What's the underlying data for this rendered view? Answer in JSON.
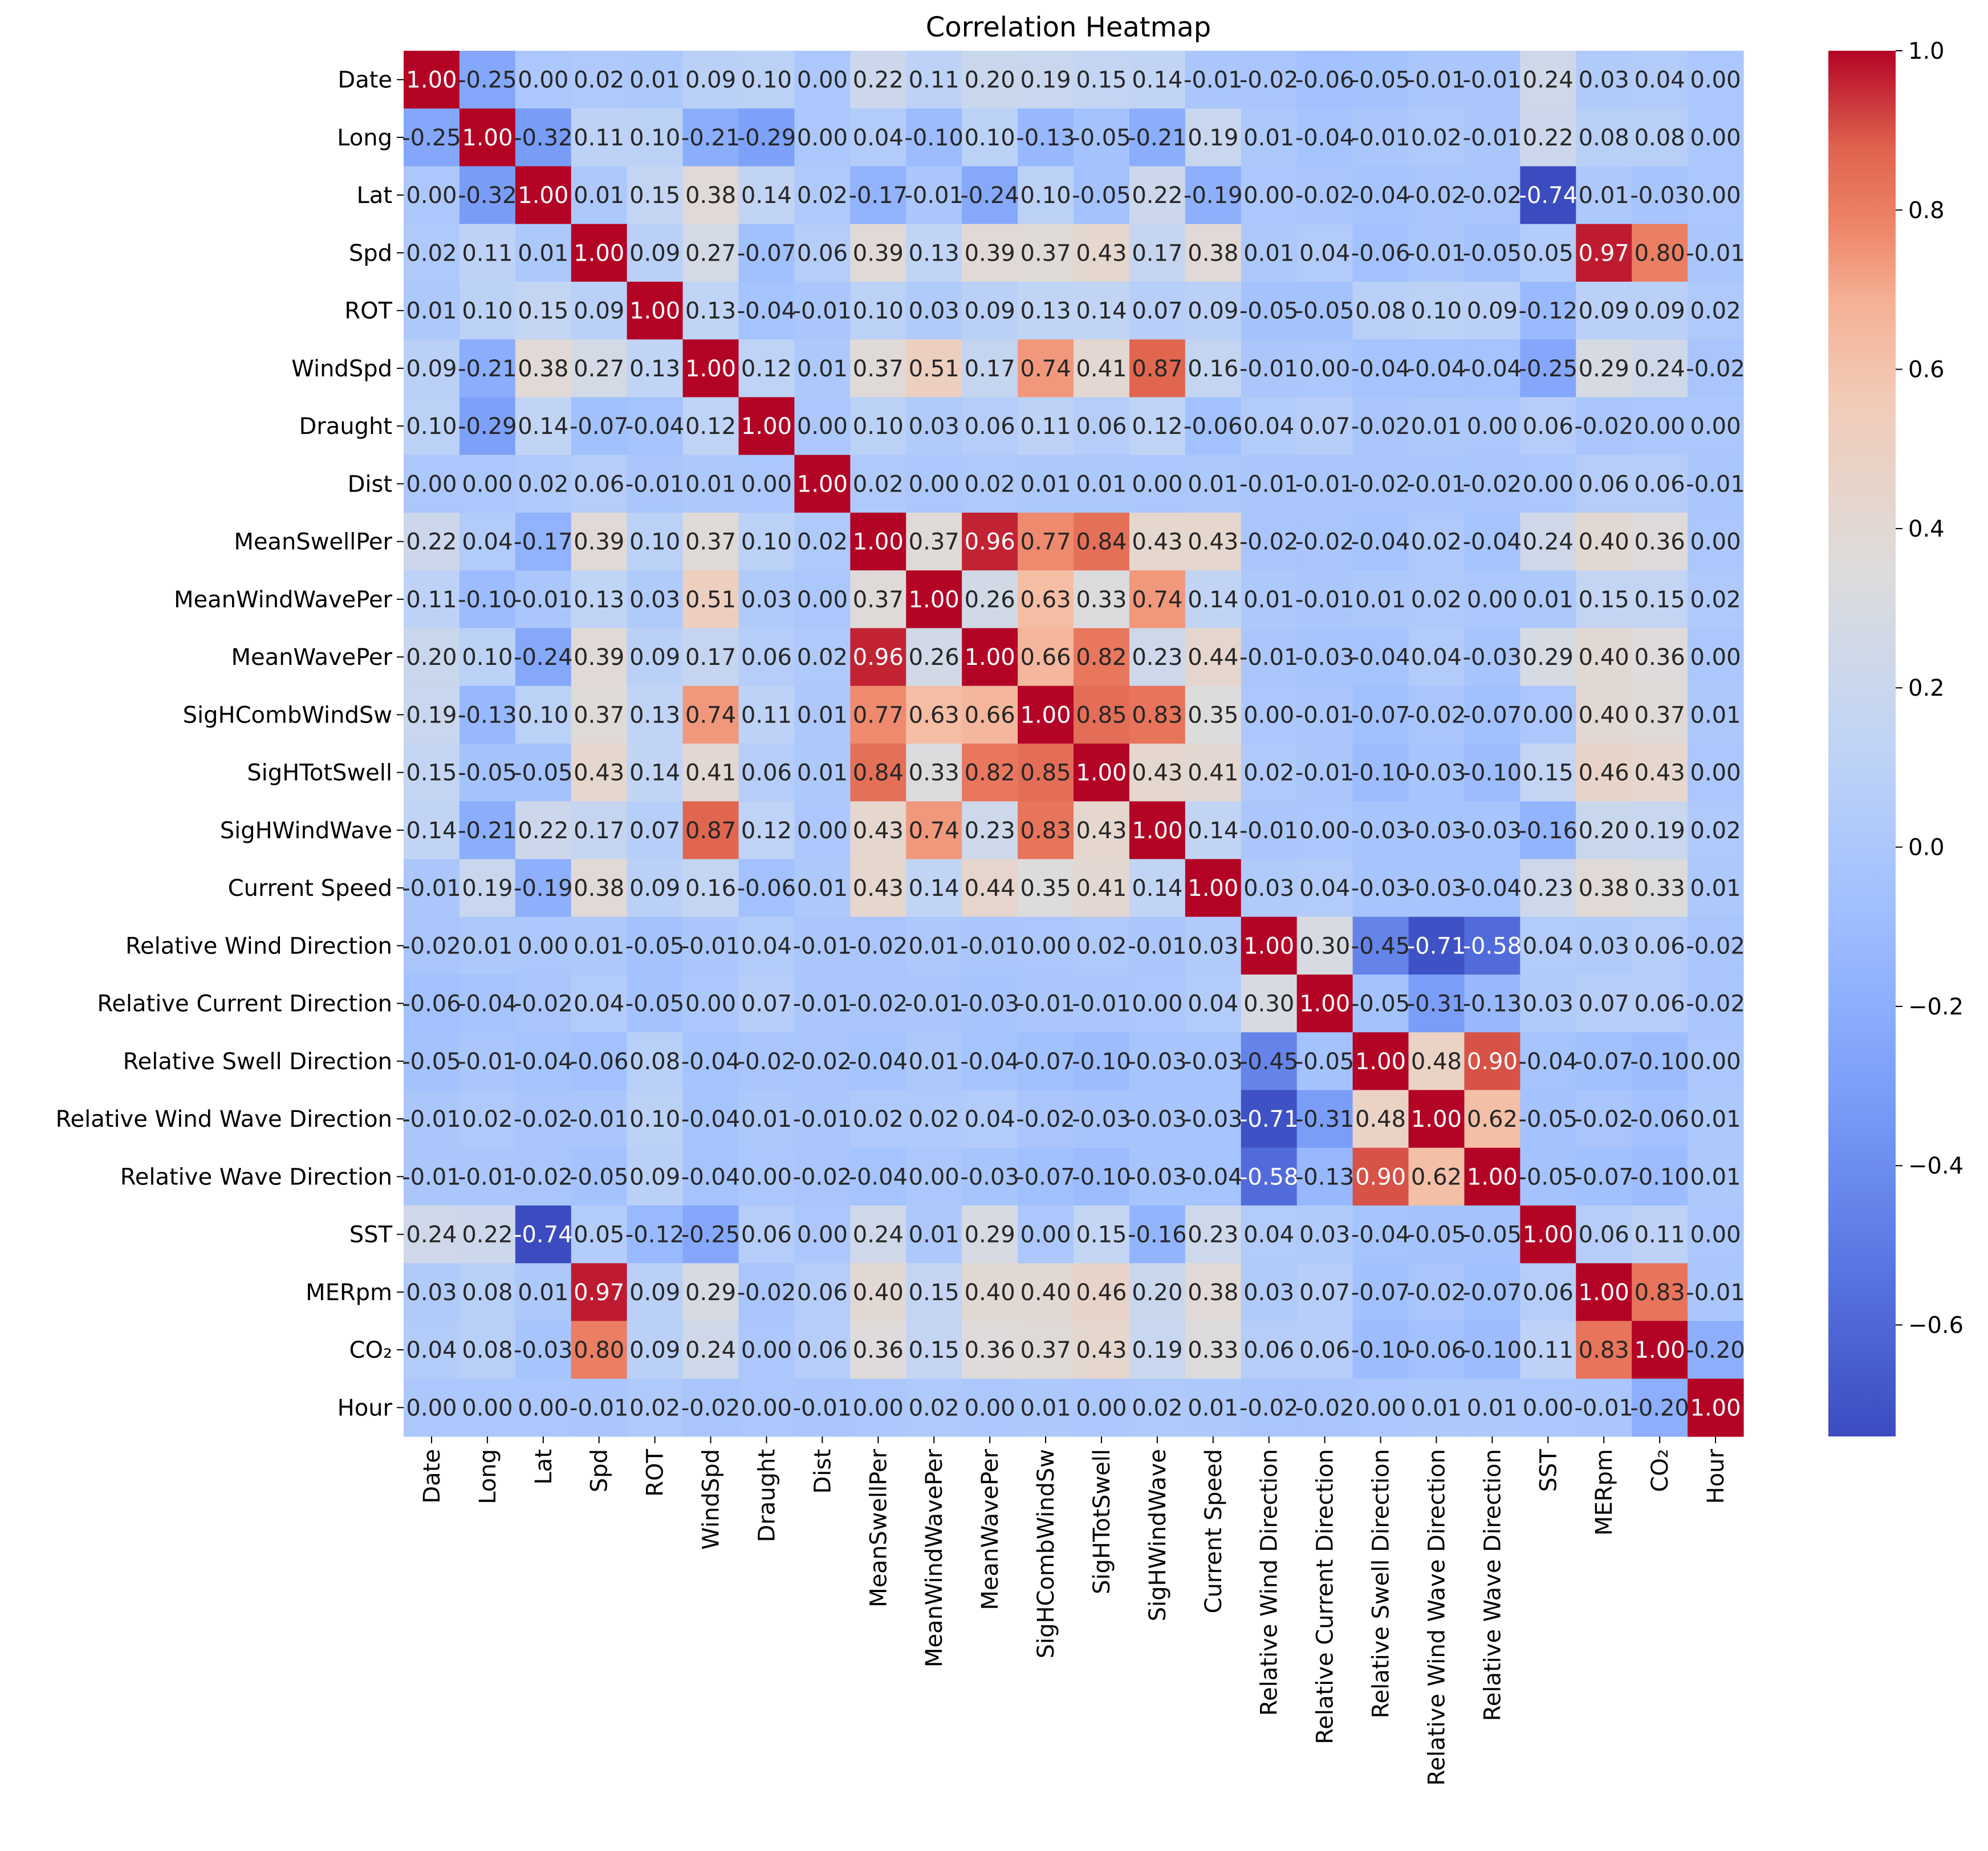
{
  "chart_data": {
    "type": "heatmap",
    "title": "Correlation Heatmap",
    "colormap": "coolwarm",
    "vmin": -0.74,
    "vmax": 1.0,
    "labels": [
      "Date",
      "Long",
      "Lat",
      "Spd",
      "ROT",
      "WindSpd",
      "Draught",
      "Dist",
      "MeanSwellPer",
      "MeanWindWavePer",
      "MeanWavePer",
      "SigHCombWindSw",
      "SigHTotSwell",
      "SigHWindWave",
      "Current Speed",
      "Relative Wind Direction",
      "Relative Current Direction",
      "Relative Swell Direction",
      "Relative Wind Wave Direction",
      "Relative Wave Direction",
      "SST",
      "MERpm",
      "CO₂",
      "Hour"
    ],
    "values": [
      [
        1.0,
        -0.25,
        0.0,
        0.02,
        0.01,
        0.09,
        0.1,
        0.0,
        0.22,
        0.11,
        0.2,
        0.19,
        0.15,
        0.14,
        -0.01,
        -0.02,
        -0.06,
        -0.05,
        -0.01,
        -0.01,
        0.24,
        0.03,
        0.04,
        0.0
      ],
      [
        -0.25,
        1.0,
        -0.32,
        0.11,
        0.1,
        -0.21,
        -0.29,
        0.0,
        0.04,
        -0.1,
        0.1,
        -0.13,
        -0.05,
        -0.21,
        0.19,
        0.01,
        -0.04,
        -0.01,
        0.02,
        -0.01,
        0.22,
        0.08,
        0.08,
        -0.0
      ],
      [
        0.0,
        -0.32,
        1.0,
        0.01,
        0.15,
        0.38,
        0.14,
        0.02,
        -0.17,
        -0.01,
        -0.24,
        0.1,
        -0.05,
        0.22,
        -0.19,
        0.0,
        -0.02,
        -0.04,
        -0.02,
        -0.02,
        -0.74,
        0.01,
        -0.03,
        0.0
      ],
      [
        0.02,
        0.11,
        0.01,
        1.0,
        0.09,
        0.27,
        -0.07,
        0.06,
        0.39,
        0.13,
        0.39,
        0.37,
        0.43,
        0.17,
        0.38,
        0.01,
        0.04,
        -0.06,
        -0.01,
        -0.05,
        0.05,
        0.97,
        0.8,
        -0.01
      ],
      [
        0.01,
        0.1,
        0.15,
        0.09,
        1.0,
        0.13,
        -0.04,
        -0.01,
        0.1,
        0.03,
        0.09,
        0.13,
        0.14,
        0.07,
        0.09,
        -0.05,
        -0.05,
        0.08,
        0.1,
        0.09,
        -0.12,
        0.09,
        0.09,
        0.02
      ],
      [
        0.09,
        -0.21,
        0.38,
        0.27,
        0.13,
        1.0,
        0.12,
        0.01,
        0.37,
        0.51,
        0.17,
        0.74,
        0.41,
        0.87,
        0.16,
        -0.01,
        0.0,
        -0.04,
        -0.04,
        -0.04,
        -0.25,
        0.29,
        0.24,
        -0.02
      ],
      [
        0.1,
        -0.29,
        0.14,
        -0.07,
        -0.04,
        0.12,
        1.0,
        0.0,
        0.1,
        0.03,
        0.06,
        0.11,
        0.06,
        0.12,
        -0.06,
        0.04,
        0.07,
        -0.02,
        0.01,
        -0.0,
        0.06,
        -0.02,
        -0.0,
        0.0
      ],
      [
        0.0,
        0.0,
        0.02,
        0.06,
        -0.01,
        0.01,
        0.0,
        1.0,
        0.02,
        0.0,
        0.02,
        0.01,
        0.01,
        -0.0,
        0.01,
        -0.01,
        -0.01,
        -0.02,
        -0.01,
        -0.02,
        -0.0,
        0.06,
        0.06,
        -0.01
      ],
      [
        0.22,
        0.04,
        -0.17,
        0.39,
        0.1,
        0.37,
        0.1,
        0.02,
        1.0,
        0.37,
        0.96,
        0.77,
        0.84,
        0.43,
        0.43,
        -0.02,
        -0.02,
        -0.04,
        0.02,
        -0.04,
        0.24,
        0.4,
        0.36,
        -0.0
      ],
      [
        0.11,
        -0.1,
        -0.01,
        0.13,
        0.03,
        0.51,
        0.03,
        0.0,
        0.37,
        1.0,
        0.26,
        0.63,
        0.33,
        0.74,
        0.14,
        0.01,
        -0.01,
        0.01,
        0.02,
        0.0,
        0.01,
        0.15,
        0.15,
        0.02
      ],
      [
        0.2,
        0.1,
        -0.24,
        0.39,
        0.09,
        0.17,
        0.06,
        0.02,
        0.96,
        0.26,
        1.0,
        0.66,
        0.82,
        0.23,
        0.44,
        -0.01,
        -0.03,
        -0.04,
        0.04,
        -0.03,
        0.29,
        0.4,
        0.36,
        0.0
      ],
      [
        0.19,
        -0.13,
        0.1,
        0.37,
        0.13,
        0.74,
        0.11,
        0.01,
        0.77,
        0.63,
        0.66,
        1.0,
        0.85,
        0.83,
        0.35,
        -0.0,
        -0.01,
        -0.07,
        -0.02,
        -0.07,
        0.0,
        0.4,
        0.37,
        0.01
      ],
      [
        0.15,
        -0.05,
        -0.05,
        0.43,
        0.14,
        0.41,
        0.06,
        0.01,
        0.84,
        0.33,
        0.82,
        0.85,
        1.0,
        0.43,
        0.41,
        0.02,
        -0.01,
        -0.1,
        -0.03,
        -0.1,
        0.15,
        0.46,
        0.43,
        0.0
      ],
      [
        0.14,
        -0.21,
        0.22,
        0.17,
        0.07,
        0.87,
        0.12,
        -0.0,
        0.43,
        0.74,
        0.23,
        0.83,
        0.43,
        1.0,
        0.14,
        -0.01,
        -0.0,
        -0.03,
        -0.03,
        -0.03,
        -0.16,
        0.2,
        0.19,
        0.02
      ],
      [
        -0.01,
        0.19,
        -0.19,
        0.38,
        0.09,
        0.16,
        -0.06,
        0.01,
        0.43,
        0.14,
        0.44,
        0.35,
        0.41,
        0.14,
        1.0,
        0.03,
        0.04,
        -0.03,
        -0.03,
        -0.04,
        0.23,
        0.38,
        0.33,
        0.01
      ],
      [
        -0.02,
        0.01,
        0.0,
        0.01,
        -0.05,
        -0.01,
        0.04,
        -0.01,
        -0.02,
        0.01,
        -0.01,
        -0.0,
        0.02,
        -0.01,
        0.03,
        1.0,
        0.3,
        -0.45,
        -0.71,
        -0.58,
        0.04,
        0.03,
        0.06,
        -0.02
      ],
      [
        -0.06,
        -0.04,
        -0.02,
        0.04,
        -0.05,
        0.0,
        0.07,
        -0.01,
        -0.02,
        -0.01,
        -0.03,
        -0.01,
        -0.01,
        -0.0,
        0.04,
        0.3,
        1.0,
        -0.05,
        -0.31,
        -0.13,
        0.03,
        0.07,
        0.06,
        -0.02
      ],
      [
        -0.05,
        -0.01,
        -0.04,
        -0.06,
        0.08,
        -0.04,
        -0.02,
        -0.02,
        -0.04,
        0.01,
        -0.04,
        -0.07,
        -0.1,
        -0.03,
        -0.03,
        -0.45,
        -0.05,
        1.0,
        0.48,
        0.9,
        -0.04,
        -0.07,
        -0.1,
        -0.0
      ],
      [
        -0.01,
        0.02,
        -0.02,
        -0.01,
        0.1,
        -0.04,
        0.01,
        -0.01,
        0.02,
        0.02,
        0.04,
        -0.02,
        -0.03,
        -0.03,
        -0.03,
        -0.71,
        -0.31,
        0.48,
        1.0,
        0.62,
        -0.05,
        -0.02,
        -0.06,
        0.01
      ],
      [
        -0.01,
        -0.01,
        -0.02,
        -0.05,
        0.09,
        -0.04,
        -0.0,
        -0.02,
        -0.04,
        0.0,
        -0.03,
        -0.07,
        -0.1,
        -0.03,
        -0.04,
        -0.58,
        -0.13,
        0.9,
        0.62,
        1.0,
        -0.05,
        -0.07,
        -0.1,
        0.01
      ],
      [
        0.24,
        0.22,
        -0.74,
        0.05,
        -0.12,
        -0.25,
        0.06,
        -0.0,
        0.24,
        0.01,
        0.29,
        0.0,
        0.15,
        -0.16,
        0.23,
        0.04,
        0.03,
        -0.04,
        -0.05,
        -0.05,
        1.0,
        0.06,
        0.11,
        0.0
      ],
      [
        0.03,
        0.08,
        0.01,
        0.97,
        0.09,
        0.29,
        -0.02,
        0.06,
        0.4,
        0.15,
        0.4,
        0.4,
        0.46,
        0.2,
        0.38,
        0.03,
        0.07,
        -0.07,
        -0.02,
        -0.07,
        0.06,
        1.0,
        0.83,
        -0.01
      ],
      [
        0.04,
        0.08,
        -0.03,
        0.8,
        0.09,
        0.24,
        -0.0,
        0.06,
        0.36,
        0.15,
        0.36,
        0.37,
        0.43,
        0.19,
        0.33,
        0.06,
        0.06,
        -0.1,
        -0.06,
        -0.1,
        0.11,
        0.83,
        1.0,
        -0.2
      ],
      [
        0.0,
        -0.0,
        -0.0,
        -0.01,
        0.02,
        -0.02,
        0.0,
        -0.01,
        -0.0,
        0.02,
        0.0,
        0.01,
        0.0,
        0.02,
        0.01,
        -0.02,
        -0.02,
        -0.0,
        0.01,
        0.01,
        0.0,
        -0.01,
        -0.2,
        1.0
      ]
    ],
    "colorbar": {
      "ticks": [
        1.0,
        0.8,
        0.6,
        0.4,
        0.2,
        0.0,
        -0.2,
        -0.4,
        -0.6
      ],
      "tick_labels": [
        "1.0",
        "0.8",
        "0.6",
        "0.4",
        "0.2",
        "0.0",
        "−0.2",
        "−0.4",
        "−0.6"
      ]
    }
  }
}
